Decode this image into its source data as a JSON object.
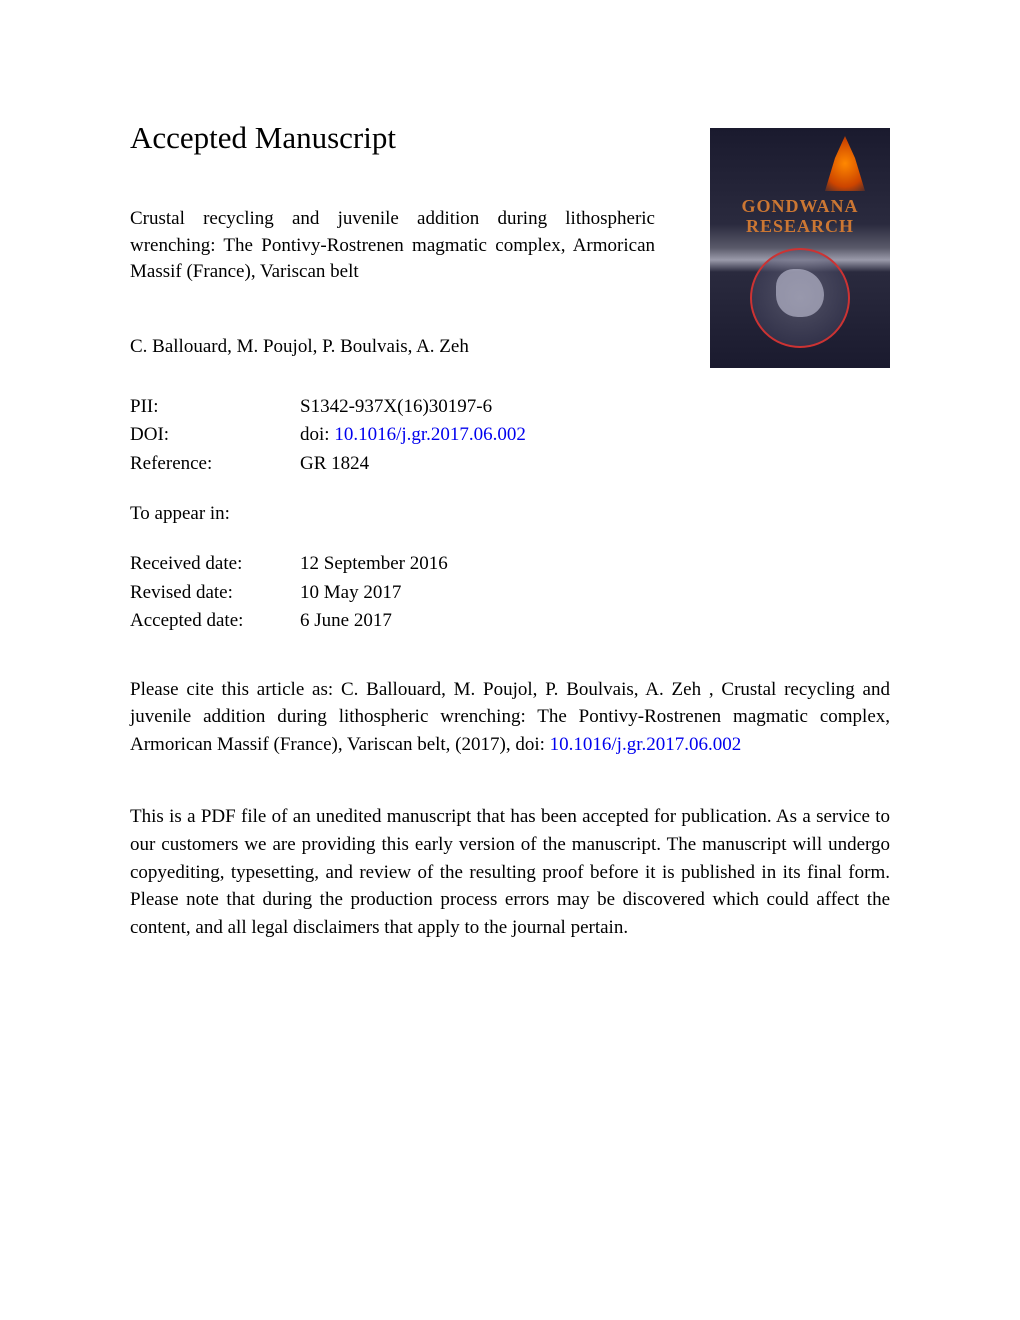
{
  "page": {
    "title": "Accepted Manuscript"
  },
  "article": {
    "title": "Crustal recycling and juvenile addition during lithospheric wrenching: The Pontivy-Rostrenen magmatic complex, Armorican Massif (France), Variscan belt",
    "authors": "C. Ballouard, M. Poujol, P. Boulvais, A. Zeh"
  },
  "journal": {
    "name_line1": "GONDWANA",
    "name_line2": "RESEARCH"
  },
  "metadata": {
    "pii_label": "PII:",
    "pii_value": "S1342-937X(16)30197-6",
    "doi_label": "DOI:",
    "doi_prefix": "doi: ",
    "doi_value": "10.1016/j.gr.2017.06.002",
    "reference_label": "Reference:",
    "reference_value": "GR 1824",
    "to_appear": "To appear in:",
    "received_label": "Received date:",
    "received_value": "12 September 2016",
    "revised_label": "Revised date:",
    "revised_value": "10 May 2017",
    "accepted_label": "Accepted date:",
    "accepted_value": "6 June 2017"
  },
  "citation": {
    "text_before": "Please cite this article as: C. Ballouard, M. Poujol, P. Boulvais, A. Zeh , Crustal recycling and juvenile addition during lithospheric wrenching: The Pontivy-Rostrenen magmatic complex, Armorican Massif (France), Variscan belt, (2017), doi: ",
    "doi_link": "10.1016/j.gr.2017.06.002"
  },
  "disclaimer": {
    "text": "This is a PDF file of an unedited manuscript that has been accepted for publication. As a service to our customers we are providing this early version of the manuscript. The manuscript will undergo copyediting, typesetting, and review of the resulting proof before it is published in its final form. Please note that during the production process errors may be discovered which could affect the content, and all legal disclaimers that apply to the journal pertain."
  },
  "colors": {
    "text": "#000000",
    "link": "#0000ee",
    "background": "#ffffff"
  },
  "typography": {
    "base_fontsize": 19,
    "title_fontsize": 31,
    "font_family": "Times New Roman"
  }
}
